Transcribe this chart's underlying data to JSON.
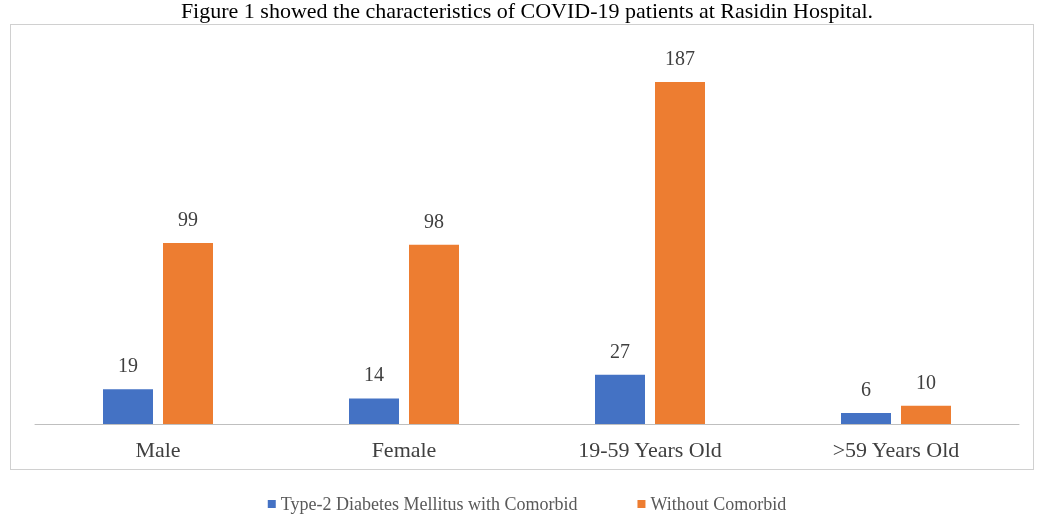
{
  "chart_data": {
    "type": "bar",
    "title": "Figure 1 showed the characteristics of COVID-19 patients at Rasidin Hospital.",
    "categories": [
      "Male",
      "Female",
      "19-59 Years Old",
      ">59 Years Old"
    ],
    "series": [
      {
        "name": "Type-2 Diabetes Mellitus with Comorbid",
        "color": "#4472c4",
        "values": [
          19,
          14,
          27,
          6
        ]
      },
      {
        "name": "Without Comorbid",
        "color": "#ed7d31",
        "values": [
          99,
          98,
          187,
          10
        ]
      }
    ],
    "data_labels": true,
    "legend": "bottom"
  }
}
